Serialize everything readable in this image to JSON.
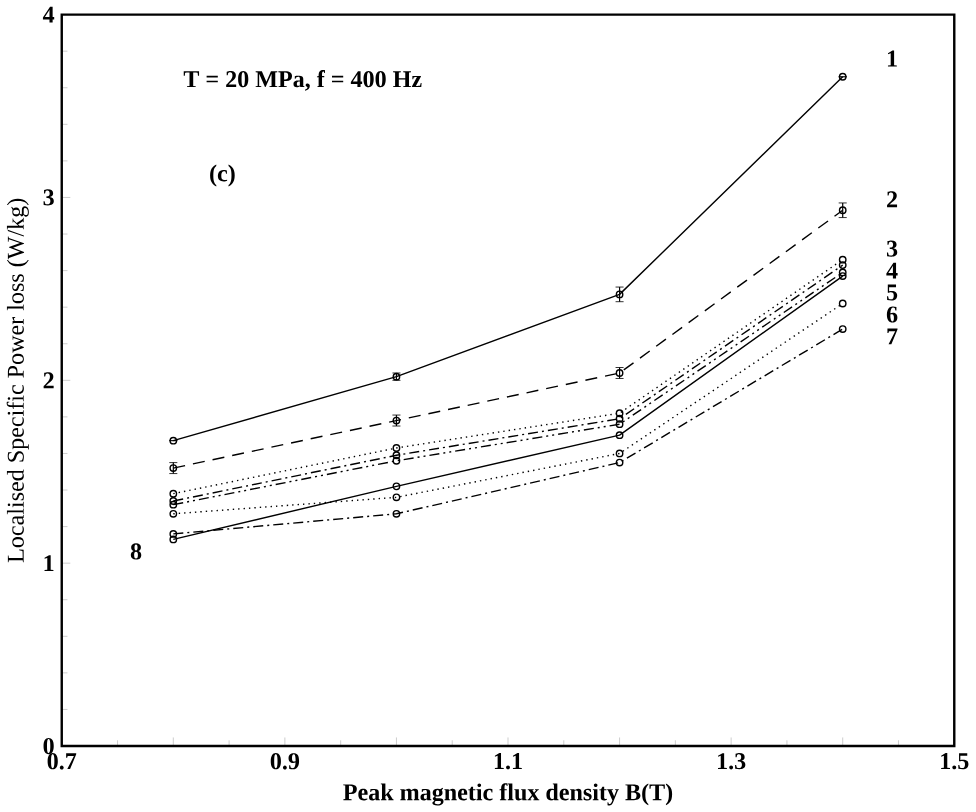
{
  "chart_data": {
    "type": "line",
    "xlabel": "Peak magnetic flux density B(T)",
    "ylabel": "Localised Specific Power loss (W/kg)",
    "x": [
      0.8,
      1.0,
      1.2,
      1.4
    ],
    "xlim": [
      0.7,
      1.5
    ],
    "ylim": [
      0,
      4
    ],
    "xticks": [
      0.7,
      {
        "value": 0.8,
        "label": null
      },
      0.9,
      {
        "value": 1.0,
        "label": null
      },
      1.1,
      {
        "value": 1.2,
        "label": null
      },
      1.3,
      {
        "value": 1.4,
        "label": null
      },
      1.5
    ],
    "yticks": [
      0,
      1,
      2,
      3,
      4
    ],
    "grid": false,
    "marker": "circle",
    "series": [
      {
        "name": "1",
        "color": "#000000",
        "line_style": "solid",
        "values": [
          1.67,
          2.02,
          2.47,
          3.66
        ],
        "errors": [
          null,
          0.02,
          0.04,
          null
        ]
      },
      {
        "name": "2",
        "color": "#000000",
        "line_style": "dashed",
        "values": [
          1.52,
          1.78,
          2.04,
          2.93
        ],
        "errors": [
          0.03,
          0.03,
          0.03,
          0.04
        ]
      },
      {
        "name": "3",
        "color": "#000000",
        "line_style": "dotted",
        "values": [
          1.38,
          1.63,
          1.82,
          2.66
        ]
      },
      {
        "name": "4",
        "color": "#000000",
        "line_style": "dashdot",
        "values": [
          1.34,
          1.59,
          1.79,
          2.63
        ]
      },
      {
        "name": "5",
        "color": "#000000",
        "line_style": "dashdotdot",
        "values": [
          1.32,
          1.56,
          1.76,
          2.59
        ]
      },
      {
        "name": "6",
        "color": "#000000",
        "line_style": "dotted",
        "values": [
          1.27,
          1.36,
          1.6,
          2.42
        ]
      },
      {
        "name": "7",
        "color": "#000000",
        "line_style": "dashdot",
        "values": [
          1.16,
          1.27,
          1.55,
          2.28
        ]
      },
      {
        "name": "8",
        "color": "#000000",
        "line_style": "solid",
        "values": [
          1.13,
          1.42,
          1.7,
          2.57
        ]
      }
    ],
    "annotations": [
      "T = 20 MPa,  f = 400 Hz",
      "(c)"
    ]
  }
}
